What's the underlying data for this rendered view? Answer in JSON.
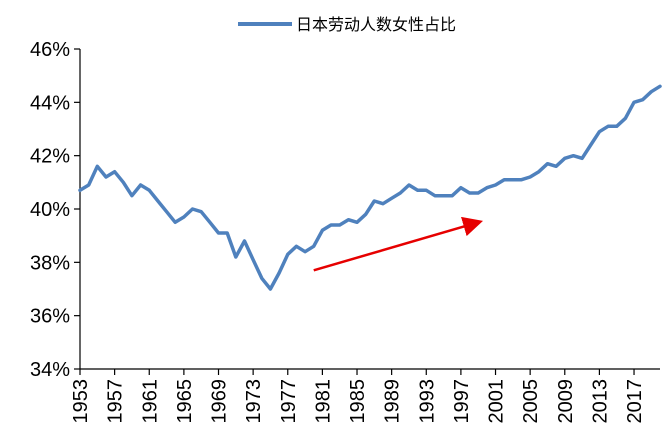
{
  "chart_data": {
    "type": "line",
    "title": "",
    "xlabel": "",
    "ylabel": "",
    "legend": {
      "position": "top",
      "entries": [
        "日本劳动人数女性占比"
      ]
    },
    "grid": false,
    "ylim": [
      34,
      46
    ],
    "yticks": [
      34,
      36,
      38,
      40,
      42,
      44,
      46
    ],
    "ytick_labels": [
      "34%",
      "36%",
      "38%",
      "40%",
      "42%",
      "44%",
      "46%"
    ],
    "xlim": [
      1953,
      2020
    ],
    "xticks": [
      1953,
      1957,
      1961,
      1965,
      1969,
      1973,
      1977,
      1981,
      1985,
      1989,
      1993,
      1997,
      2001,
      2005,
      2009,
      2013,
      2017
    ],
    "xtick_labels": [
      "1953",
      "1957",
      "1961",
      "1965",
      "1969",
      "1973",
      "1977",
      "1981",
      "1985",
      "1989",
      "1993",
      "1997",
      "2001",
      "2005",
      "2009",
      "2013",
      "2017"
    ],
    "series": [
      {
        "name": "日本劳动人数女性占比",
        "color": "#4f81bd",
        "x": [
          1953,
          1954,
          1955,
          1956,
          1957,
          1958,
          1959,
          1960,
          1961,
          1962,
          1963,
          1964,
          1965,
          1966,
          1967,
          1968,
          1969,
          1970,
          1971,
          1972,
          1973,
          1974,
          1975,
          1976,
          1977,
          1978,
          1979,
          1980,
          1981,
          1982,
          1983,
          1984,
          1985,
          1986,
          1987,
          1988,
          1989,
          1990,
          1991,
          1992,
          1993,
          1994,
          1995,
          1996,
          1997,
          1998,
          1999,
          2000,
          2001,
          2002,
          2003,
          2004,
          2005,
          2006,
          2007,
          2008,
          2009,
          2010,
          2011,
          2012,
          2013,
          2014,
          2015,
          2016,
          2017,
          2018,
          2019,
          2020
        ],
        "values": [
          40.7,
          40.9,
          41.6,
          41.2,
          41.4,
          41.0,
          40.5,
          40.9,
          40.7,
          40.3,
          39.9,
          39.5,
          39.7,
          40.0,
          39.9,
          39.5,
          39.1,
          39.1,
          38.2,
          38.8,
          38.1,
          37.4,
          37.0,
          37.6,
          38.3,
          38.6,
          38.4,
          38.6,
          39.2,
          39.4,
          39.4,
          39.6,
          39.5,
          39.8,
          40.3,
          40.2,
          40.4,
          40.6,
          40.9,
          40.7,
          40.7,
          40.5,
          40.5,
          40.5,
          40.8,
          40.6,
          40.6,
          40.8,
          40.9,
          41.1,
          41.1,
          41.1,
          41.2,
          41.4,
          41.7,
          41.6,
          41.9,
          42.0,
          41.9,
          42.4,
          42.9,
          43.1,
          43.1,
          43.4,
          44.0,
          44.1,
          44.4,
          44.6
        ]
      }
    ],
    "annotations": [
      {
        "type": "arrow",
        "color": "#e60000",
        "from": {
          "x": 1980,
          "y": 37.7
        },
        "to": {
          "x": 1999,
          "y": 39.5
        }
      }
    ]
  }
}
